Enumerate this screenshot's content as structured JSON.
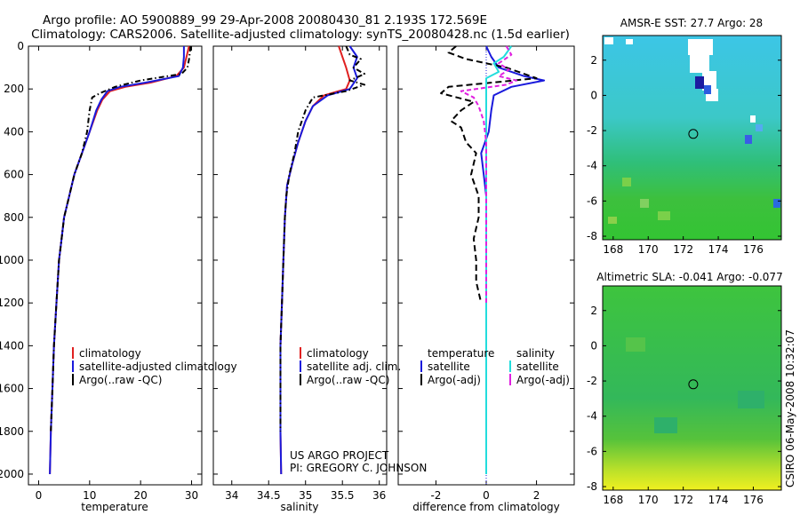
{
  "title_line1": "Argo profile: AO 5900889_99 29-Apr-2008 20080430_81 2.193S 172.569E",
  "title_line2": "Climatology: CARS2006. Satellite-adjusted climatology: synTS_20080428.nc (1.5d earlier)",
  "project_line1": "US ARGO PROJECT",
  "project_line2": "PI: GREGORY C. JOHNSON",
  "stamp": "CSIRO 06-May-2008 10:32:07",
  "colors": {
    "climatology": "#e02020",
    "satellite": "#1a1adc",
    "argo": "#000000",
    "sat_sal": "#22dddd",
    "argo_sal": "#e020e0"
  },
  "chart_data": [
    {
      "type": "line",
      "xlabel": "temperature",
      "xlim": [
        -2,
        32
      ],
      "ylim": [
        0,
        2050
      ],
      "xticks": [
        "0",
        "10",
        "20",
        "30"
      ],
      "xtick_values": [
        0,
        10,
        20,
        30
      ],
      "yticks": [
        "0",
        "200",
        "400",
        "600",
        "800",
        "1000",
        "1200",
        "1400",
        "1600",
        "1800",
        "2000"
      ],
      "ytick_values": [
        0,
        200,
        400,
        600,
        800,
        1000,
        1200,
        1400,
        1600,
        1800,
        2000
      ],
      "legend": [
        "climatology",
        "satellite-adjusted climatology",
        "Argo(..raw -QC)"
      ],
      "series": [
        {
          "name": "climatology",
          "color_key": "climatology",
          "dash": "",
          "points": [
            [
              29.5,
              0
            ],
            [
              29,
              50
            ],
            [
              28.5,
              100
            ],
            [
              27,
              140
            ],
            [
              22,
              170
            ],
            [
              17,
              190
            ],
            [
              14,
              210
            ],
            [
              12.5,
              250
            ],
            [
              11.5,
              300
            ],
            [
              10,
              400
            ],
            [
              8.5,
              500
            ],
            [
              7,
              600
            ],
            [
              6,
              700
            ],
            [
              5,
              800
            ],
            [
              4.5,
              900
            ],
            [
              4,
              1000
            ],
            [
              3.5,
              1200
            ],
            [
              3,
              1400
            ],
            [
              2.7,
              1600
            ],
            [
              2.4,
              1800
            ],
            [
              2.2,
              2000
            ]
          ]
        },
        {
          "name": "satellite-adjusted climatology",
          "color_key": "satellite",
          "dash": "",
          "points": [
            [
              28.5,
              0
            ],
            [
              28.5,
              50
            ],
            [
              28.3,
              100
            ],
            [
              27.5,
              140
            ],
            [
              21,
              170
            ],
            [
              16,
              190
            ],
            [
              13.5,
              210
            ],
            [
              12.3,
              250
            ],
            [
              11.3,
              300
            ],
            [
              10,
              400
            ],
            [
              8.5,
              500
            ],
            [
              7,
              600
            ],
            [
              6,
              700
            ],
            [
              5,
              800
            ],
            [
              4.5,
              900
            ],
            [
              4,
              1000
            ],
            [
              3.5,
              1200
            ],
            [
              3,
              1400
            ],
            [
              2.7,
              1600
            ],
            [
              2.4,
              1800
            ],
            [
              2.2,
              2000
            ]
          ]
        },
        {
          "name": "Argo(..raw -QC)",
          "color_key": "argo",
          "dash": "6,3,1.5,3",
          "points": [
            [
              29.8,
              0
            ],
            [
              29.5,
              60
            ],
            [
              29.2,
              100
            ],
            [
              28,
              130
            ],
            [
              20,
              160
            ],
            [
              15,
              190
            ],
            [
              12,
              220
            ],
            [
              10.5,
              240
            ],
            [
              10,
              300
            ],
            [
              9.5,
              400
            ],
            [
              8.5,
              500
            ],
            [
              7,
              600
            ],
            [
              6,
              700
            ],
            [
              5,
              800
            ],
            [
              4.5,
              900
            ],
            [
              4,
              1000
            ],
            [
              3.5,
              1200
            ],
            [
              3,
              1400
            ],
            [
              2.7,
              1600
            ],
            [
              2.4,
              1800
            ]
          ]
        }
      ]
    },
    {
      "type": "line",
      "xlabel": "salinity",
      "xlim": [
        33.75,
        36.1
      ],
      "ylim": [
        0,
        2050
      ],
      "xticks": [
        "34",
        "34.5",
        "35",
        "35.5",
        "36"
      ],
      "xtick_values": [
        34,
        34.5,
        35,
        35.5,
        36
      ],
      "legend": [
        "climatology",
        "satellite adj. clim.",
        "Argo(..raw -QC)"
      ],
      "series": [
        {
          "name": "climatology",
          "color_key": "climatology",
          "dash": "",
          "points": [
            [
              35.45,
              0
            ],
            [
              35.5,
              50
            ],
            [
              35.55,
              100
            ],
            [
              35.6,
              160
            ],
            [
              35.55,
              200
            ],
            [
              35.25,
              230
            ],
            [
              35.1,
              280
            ],
            [
              35,
              350
            ],
            [
              34.9,
              450
            ],
            [
              34.82,
              550
            ],
            [
              34.75,
              650
            ],
            [
              34.72,
              800
            ],
            [
              34.7,
              1000
            ],
            [
              34.68,
              1200
            ],
            [
              34.66,
              1400
            ],
            [
              34.66,
              1600
            ],
            [
              34.66,
              1800
            ],
            [
              34.67,
              2000
            ]
          ]
        },
        {
          "name": "satellite adj. clim.",
          "color_key": "satellite",
          "dash": "",
          "points": [
            [
              35.6,
              0
            ],
            [
              35.7,
              50
            ],
            [
              35.65,
              100
            ],
            [
              35.7,
              150
            ],
            [
              35.6,
              200
            ],
            [
              35.3,
              230
            ],
            [
              35.1,
              280
            ],
            [
              35,
              350
            ],
            [
              34.9,
              450
            ],
            [
              34.82,
              550
            ],
            [
              34.75,
              650
            ],
            [
              34.72,
              800
            ],
            [
              34.7,
              1000
            ],
            [
              34.68,
              1200
            ],
            [
              34.66,
              1400
            ],
            [
              34.66,
              1600
            ],
            [
              34.66,
              1800
            ],
            [
              34.67,
              2000
            ]
          ]
        },
        {
          "name": "Argo(..raw -QC)",
          "color_key": "argo",
          "dash": "6,3,1.5,3",
          "points": [
            [
              35.55,
              0
            ],
            [
              35.6,
              40
            ],
            [
              35.75,
              60
            ],
            [
              35.65,
              100
            ],
            [
              35.8,
              130
            ],
            [
              35.6,
              160
            ],
            [
              35.8,
              180
            ],
            [
              35.55,
              210
            ],
            [
              35.1,
              240
            ],
            [
              35,
              300
            ],
            [
              34.9,
              400
            ],
            [
              34.85,
              500
            ],
            [
              34.78,
              600
            ],
            [
              34.74,
              700
            ],
            [
              34.72,
              800
            ],
            [
              34.7,
              1000
            ],
            [
              34.68,
              1200
            ],
            [
              34.66,
              1400
            ],
            [
              34.66,
              1600
            ],
            [
              34.66,
              1800
            ]
          ]
        }
      ]
    },
    {
      "type": "line",
      "xlabel": "difference from climatology",
      "xlim": [
        -3.5,
        3.5
      ],
      "ylim": [
        0,
        2050
      ],
      "xticks": [
        "-2",
        "0",
        "2"
      ],
      "xtick_values": [
        -2,
        0,
        2
      ],
      "legend_temperature_title": "temperature",
      "legend_salinity_title": "salinity",
      "legend_temperature": [
        "satellite",
        "Argo(-adj)"
      ],
      "legend_salinity": [
        "satellite",
        "Argo(-adj)"
      ],
      "series": [
        {
          "name": "temperature satellite",
          "color_key": "satellite",
          "dash": "",
          "points": [
            [
              0,
              0
            ],
            [
              0.2,
              50
            ],
            [
              0.5,
              100
            ],
            [
              1.5,
              140
            ],
            [
              2.3,
              160
            ],
            [
              1,
              190
            ],
            [
              0.3,
              230
            ],
            [
              0.2,
              300
            ],
            [
              0.1,
              400
            ],
            [
              -0.2,
              500
            ],
            [
              -0.1,
              600
            ],
            [
              0,
              700
            ],
            [
              0,
              800
            ],
            [
              0,
              1000
            ],
            [
              0,
              1200
            ],
            [
              0,
              1400
            ],
            [
              0,
              1600
            ],
            [
              0,
              1800
            ],
            [
              0,
              2000
            ]
          ]
        },
        {
          "name": "temperature Argo(-adj)",
          "color_key": "argo",
          "dash": "7,4",
          "points": [
            [
              -1.2,
              0
            ],
            [
              -1.5,
              30
            ],
            [
              -0.8,
              60
            ],
            [
              0.8,
              100
            ],
            [
              2,
              150
            ],
            [
              -1.5,
              190
            ],
            [
              -1.8,
              220
            ],
            [
              -0.5,
              260
            ],
            [
              -1,
              300
            ],
            [
              -1.4,
              350
            ],
            [
              -1,
              380
            ],
            [
              -0.8,
              450
            ],
            [
              -0.4,
              500
            ],
            [
              -0.6,
              600
            ],
            [
              -0.3,
              700
            ],
            [
              -0.3,
              800
            ],
            [
              -0.5,
              900
            ],
            [
              -0.4,
              1000
            ],
            [
              -0.4,
              1100
            ],
            [
              -0.2,
              1200
            ]
          ]
        },
        {
          "name": "salinity satellite",
          "color_key": "sat_sal",
          "dash": "",
          "points": [
            [
              1,
              0
            ],
            [
              0.7,
              50
            ],
            [
              0.3,
              80
            ],
            [
              0.5,
              120
            ],
            [
              0,
              150
            ],
            [
              0,
              200
            ],
            [
              0,
              300
            ],
            [
              0,
              500
            ],
            [
              0,
              800
            ],
            [
              0,
              1000
            ],
            [
              0,
              1200
            ],
            [
              0,
              1400
            ],
            [
              0,
              1600
            ],
            [
              0,
              1800
            ],
            [
              0,
              2000
            ]
          ]
        },
        {
          "name": "salinity Argo(-adj)",
          "color_key": "argo_sal",
          "dash": "5,3",
          "points": [
            [
              0.8,
              0
            ],
            [
              1,
              40
            ],
            [
              0.5,
              80
            ],
            [
              0.9,
              110
            ],
            [
              0.5,
              140
            ],
            [
              1.2,
              160
            ],
            [
              0.8,
              180
            ],
            [
              -1,
              210
            ],
            [
              -0.5,
              240
            ],
            [
              -0.3,
              280
            ],
            [
              -0.1,
              350
            ],
            [
              0,
              450
            ],
            [
              0,
              600
            ],
            [
              0,
              800
            ],
            [
              0,
              1000
            ],
            [
              0,
              1200
            ]
          ]
        }
      ]
    },
    {
      "type": "heatmap",
      "title": "AMSR-E SST: 27.7  Argo: 28",
      "xlim": [
        167.4,
        177.6
      ],
      "ylim": [
        -8.2,
        3.4
      ],
      "xticks": [
        "168",
        "170",
        "172",
        "174",
        "176"
      ],
      "xtick_values": [
        168,
        170,
        172,
        174,
        176
      ],
      "yticks": [
        "2",
        "0",
        "-2",
        "-4",
        "-6",
        "-8"
      ],
      "ytick_values": [
        2,
        0,
        -2,
        -4,
        -6,
        -8
      ],
      "marker": [
        172.57,
        -2.19
      ]
    },
    {
      "type": "heatmap",
      "title": "Altimetric SLA: -0.041  Argo: -0.077",
      "xlim": [
        167.4,
        177.6
      ],
      "ylim": [
        -8.2,
        3.4
      ],
      "xticks": [
        "168",
        "170",
        "172",
        "174",
        "176"
      ],
      "xtick_values": [
        168,
        170,
        172,
        174,
        176
      ],
      "yticks": [
        "2",
        "0",
        "-2",
        "-4",
        "-6",
        "-8"
      ],
      "ytick_values": [
        2,
        0,
        -2,
        -4,
        -6,
        -8
      ],
      "marker": [
        172.57,
        -2.19
      ]
    }
  ]
}
